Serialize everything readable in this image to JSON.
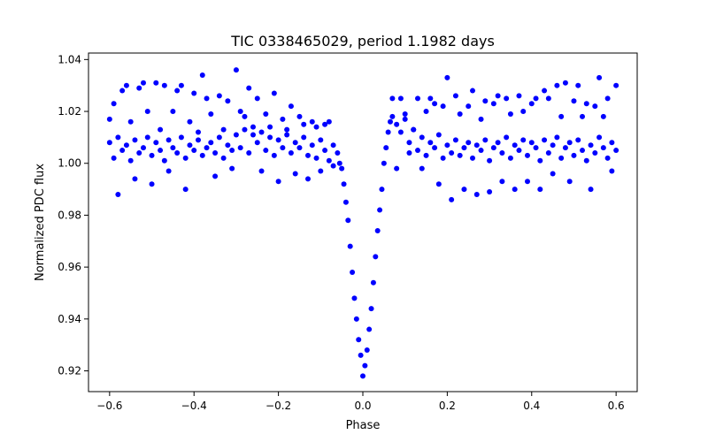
{
  "chart_data": {
    "type": "scatter",
    "title": "TIC 0338465029, period 1.1982 days",
    "xlabel": "Phase",
    "ylabel": "Normalized PDC flux",
    "xlim": [
      -0.65,
      0.65
    ],
    "ylim": [
      0.912,
      1.0425
    ],
    "xticks": [
      -0.6,
      -0.4,
      -0.2,
      0.0,
      0.2,
      0.4,
      0.6
    ],
    "xtick_labels": [
      "−0.6",
      "−0.4",
      "−0.2",
      "0.0",
      "0.2",
      "0.4",
      "0.6"
    ],
    "yticks": [
      0.92,
      0.94,
      0.96,
      0.98,
      1.0,
      1.02,
      1.04
    ],
    "ytick_labels": [
      "0.92",
      "0.94",
      "0.96",
      "0.98",
      "1.00",
      "1.02",
      "1.04"
    ],
    "grid": false,
    "marker_color": "#0000ff",
    "series": [
      {
        "points": [
          [
            -0.6,
            1.008
          ],
          [
            -0.59,
            1.002
          ],
          [
            -0.58,
            1.01
          ],
          [
            -0.57,
            1.005
          ],
          [
            -0.56,
            1.007
          ],
          [
            -0.55,
            1.001
          ],
          [
            -0.54,
            1.009
          ],
          [
            -0.53,
            1.004
          ],
          [
            -0.52,
            1.006
          ],
          [
            -0.51,
            1.01
          ],
          [
            -0.5,
            1.003
          ],
          [
            -0.49,
            1.008
          ],
          [
            -0.48,
            1.005
          ],
          [
            -0.47,
            1.001
          ],
          [
            -0.46,
            1.009
          ],
          [
            -0.45,
            1.006
          ],
          [
            -0.44,
            1.004
          ],
          [
            -0.43,
            1.01
          ],
          [
            -0.42,
            1.002
          ],
          [
            -0.41,
            1.007
          ],
          [
            -0.4,
            1.005
          ],
          [
            -0.39,
            1.009
          ],
          [
            -0.38,
            1.003
          ],
          [
            -0.37,
            1.006
          ],
          [
            -0.36,
            1.008
          ],
          [
            -0.35,
            1.004
          ],
          [
            -0.34,
            1.01
          ],
          [
            -0.33,
            1.002
          ],
          [
            -0.32,
            1.007
          ],
          [
            -0.31,
            1.005
          ],
          [
            -0.3,
            1.011
          ],
          [
            -0.29,
            1.006
          ],
          [
            -0.28,
            1.013
          ],
          [
            -0.27,
            1.004
          ],
          [
            -0.26,
            1.014
          ],
          [
            -0.25,
            1.008
          ],
          [
            -0.24,
            1.012
          ],
          [
            -0.23,
            1.005
          ],
          [
            -0.22,
            1.01
          ],
          [
            -0.21,
            1.003
          ],
          [
            -0.2,
            1.009
          ],
          [
            -0.19,
            1.006
          ],
          [
            -0.18,
            1.011
          ],
          [
            -0.17,
            1.004
          ],
          [
            -0.16,
            1.008
          ],
          [
            -0.15,
            1.006
          ],
          [
            -0.14,
            1.01
          ],
          [
            -0.13,
            1.003
          ],
          [
            -0.12,
            1.007
          ],
          [
            -0.11,
            1.002
          ],
          [
            -0.1,
            1.009
          ],
          [
            -0.09,
            1.005
          ],
          [
            -0.08,
            1.001
          ],
          [
            -0.07,
            1.007
          ],
          [
            -0.06,
            1.004
          ],
          [
            -0.055,
            1.0
          ],
          [
            -0.05,
            0.998
          ],
          [
            -0.045,
            0.992
          ],
          [
            -0.04,
            0.985
          ],
          [
            -0.035,
            0.978
          ],
          [
            -0.03,
            0.968
          ],
          [
            -0.025,
            0.958
          ],
          [
            -0.02,
            0.948
          ],
          [
            -0.015,
            0.94
          ],
          [
            -0.01,
            0.932
          ],
          [
            -0.005,
            0.926
          ],
          [
            0.0,
            0.918
          ],
          [
            0.005,
            0.922
          ],
          [
            0.01,
            0.928
          ],
          [
            0.015,
            0.936
          ],
          [
            0.02,
            0.944
          ],
          [
            0.025,
            0.954
          ],
          [
            0.03,
            0.964
          ],
          [
            0.035,
            0.974
          ],
          [
            0.04,
            0.982
          ],
          [
            0.045,
            0.99
          ],
          [
            0.05,
            1.0
          ],
          [
            0.055,
            1.006
          ],
          [
            0.06,
            1.012
          ],
          [
            0.065,
            1.016
          ],
          [
            0.07,
            1.018
          ],
          [
            0.08,
            1.015
          ],
          [
            0.09,
            1.012
          ],
          [
            0.1,
            1.017
          ],
          [
            0.11,
            1.008
          ],
          [
            0.12,
            1.013
          ],
          [
            0.13,
            1.005
          ],
          [
            0.14,
            1.01
          ],
          [
            0.15,
            1.003
          ],
          [
            0.16,
            1.008
          ],
          [
            0.17,
            1.006
          ],
          [
            0.18,
            1.011
          ],
          [
            0.19,
            1.002
          ],
          [
            0.2,
            1.007
          ],
          [
            0.21,
            1.004
          ],
          [
            0.22,
            1.009
          ],
          [
            0.23,
            1.003
          ],
          [
            0.24,
            1.006
          ],
          [
            0.25,
            1.008
          ],
          [
            0.26,
            1.002
          ],
          [
            0.27,
            1.007
          ],
          [
            0.28,
            1.005
          ],
          [
            0.29,
            1.009
          ],
          [
            0.3,
            1.001
          ],
          [
            0.31,
            1.006
          ],
          [
            0.32,
            1.008
          ],
          [
            0.33,
            1.004
          ],
          [
            0.34,
            1.01
          ],
          [
            0.35,
            1.002
          ],
          [
            0.36,
            1.007
          ],
          [
            0.37,
            1.005
          ],
          [
            0.38,
            1.009
          ],
          [
            0.39,
            1.003
          ],
          [
            0.4,
            1.008
          ],
          [
            0.41,
            1.006
          ],
          [
            0.42,
            1.001
          ],
          [
            0.43,
            1.009
          ],
          [
            0.44,
            1.004
          ],
          [
            0.45,
            1.007
          ],
          [
            0.46,
            1.01
          ],
          [
            0.47,
            1.002
          ],
          [
            0.48,
            1.006
          ],
          [
            0.49,
            1.008
          ],
          [
            0.5,
            1.003
          ],
          [
            0.51,
            1.009
          ],
          [
            0.52,
            1.005
          ],
          [
            0.53,
            1.001
          ],
          [
            0.54,
            1.007
          ],
          [
            0.55,
            1.004
          ],
          [
            0.56,
            1.01
          ],
          [
            0.57,
            1.006
          ],
          [
            0.58,
            1.002
          ],
          [
            0.59,
            1.008
          ],
          [
            0.6,
            1.005
          ],
          [
            -0.6,
            1.017
          ],
          [
            -0.59,
            1.023
          ],
          [
            -0.58,
            0.988
          ],
          [
            -0.57,
            1.028
          ],
          [
            -0.56,
            1.03
          ],
          [
            -0.55,
            1.016
          ],
          [
            -0.54,
            0.994
          ],
          [
            -0.53,
            1.029
          ],
          [
            -0.52,
            1.031
          ],
          [
            -0.51,
            1.02
          ],
          [
            -0.5,
            0.992
          ],
          [
            -0.49,
            1.031
          ],
          [
            -0.48,
            1.013
          ],
          [
            -0.47,
            1.03
          ],
          [
            -0.46,
            0.997
          ],
          [
            -0.45,
            1.02
          ],
          [
            -0.44,
            1.028
          ],
          [
            -0.43,
            1.03
          ],
          [
            -0.42,
            0.99
          ],
          [
            -0.41,
            1.016
          ],
          [
            -0.4,
            1.027
          ],
          [
            -0.39,
            1.012
          ],
          [
            -0.38,
            1.034
          ],
          [
            -0.37,
            1.025
          ],
          [
            -0.36,
            1.019
          ],
          [
            -0.35,
            0.995
          ],
          [
            -0.34,
            1.026
          ],
          [
            -0.33,
            1.013
          ],
          [
            -0.32,
            1.024
          ],
          [
            -0.31,
            0.998
          ],
          [
            -0.3,
            1.036
          ],
          [
            -0.29,
            1.02
          ],
          [
            -0.28,
            1.018
          ],
          [
            -0.27,
            1.029
          ],
          [
            -0.26,
            1.011
          ],
          [
            -0.25,
            1.025
          ],
          [
            -0.24,
            0.997
          ],
          [
            -0.23,
            1.019
          ],
          [
            -0.22,
            1.014
          ],
          [
            -0.21,
            1.027
          ],
          [
            -0.2,
            0.993
          ],
          [
            -0.19,
            1.017
          ],
          [
            -0.18,
            1.013
          ],
          [
            -0.17,
            1.022
          ],
          [
            -0.16,
            0.996
          ],
          [
            -0.15,
            1.018
          ],
          [
            -0.14,
            1.015
          ],
          [
            -0.13,
            0.994
          ],
          [
            -0.12,
            1.016
          ],
          [
            -0.11,
            1.014
          ],
          [
            -0.1,
            0.997
          ],
          [
            -0.09,
            1.015
          ],
          [
            -0.08,
            1.016
          ],
          [
            -0.07,
            0.999
          ],
          [
            0.07,
            1.025
          ],
          [
            0.08,
            0.998
          ],
          [
            0.09,
            1.025
          ],
          [
            0.1,
            1.019
          ],
          [
            0.11,
            1.004
          ],
          [
            0.12,
            1.013
          ],
          [
            0.13,
            1.025
          ],
          [
            0.14,
            0.998
          ],
          [
            0.15,
            1.02
          ],
          [
            0.16,
            1.025
          ],
          [
            0.17,
            1.023
          ],
          [
            0.18,
            0.992
          ],
          [
            0.19,
            1.022
          ],
          [
            0.2,
            1.033
          ],
          [
            0.21,
            0.986
          ],
          [
            0.22,
            1.026
          ],
          [
            0.23,
            1.019
          ],
          [
            0.24,
            0.99
          ],
          [
            0.25,
            1.022
          ],
          [
            0.26,
            1.028
          ],
          [
            0.27,
            0.988
          ],
          [
            0.28,
            1.017
          ],
          [
            0.29,
            1.024
          ],
          [
            0.3,
            0.989
          ],
          [
            0.31,
            1.023
          ],
          [
            0.32,
            1.026
          ],
          [
            0.33,
            0.993
          ],
          [
            0.34,
            1.025
          ],
          [
            0.35,
            1.019
          ],
          [
            0.36,
            0.99
          ],
          [
            0.37,
            1.026
          ],
          [
            0.38,
            1.02
          ],
          [
            0.39,
            0.993
          ],
          [
            0.4,
            1.023
          ],
          [
            0.41,
            1.025
          ],
          [
            0.42,
            0.99
          ],
          [
            0.43,
            1.028
          ],
          [
            0.44,
            1.025
          ],
          [
            0.45,
            0.996
          ],
          [
            0.46,
            1.03
          ],
          [
            0.47,
            1.018
          ],
          [
            0.48,
            1.031
          ],
          [
            0.49,
            0.993
          ],
          [
            0.5,
            1.024
          ],
          [
            0.51,
            1.03
          ],
          [
            0.52,
            1.018
          ],
          [
            0.53,
            1.023
          ],
          [
            0.54,
            0.99
          ],
          [
            0.55,
            1.022
          ],
          [
            0.56,
            1.033
          ],
          [
            0.57,
            1.018
          ],
          [
            0.58,
            1.025
          ],
          [
            0.59,
            0.997
          ],
          [
            0.6,
            1.03
          ]
        ]
      }
    ]
  }
}
